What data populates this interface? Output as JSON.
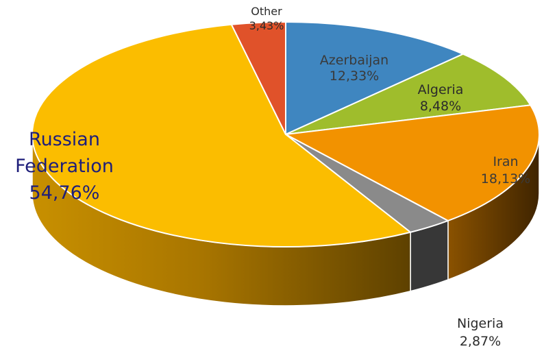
{
  "chart_data": {
    "type": "pie",
    "title": "",
    "style": "3d",
    "slices": [
      {
        "key": "azerbaijan",
        "label": "Azerbaijan",
        "value_text": "12,33%",
        "value": 12.33,
        "color": "#3f86c0",
        "label_color": "#3a3a3a"
      },
      {
        "key": "algeria",
        "label": "Algeria",
        "value_text": "8,48%",
        "value": 8.48,
        "color": "#9fbd2c",
        "label_color": "#2b2b2b"
      },
      {
        "key": "iran",
        "label": "Iran",
        "value_text": "18,13%",
        "value": 18.13,
        "color": "#f29200",
        "label_color": "#3a3a3a"
      },
      {
        "key": "nigeria",
        "label": "Nigeria",
        "value_text": "2,87%",
        "value": 2.87,
        "color": "#8a8a8a",
        "label_color": "#2b2b2b"
      },
      {
        "key": "russian-federation",
        "label": "Russian Federation",
        "label_lines": [
          "Russian",
          "Federation"
        ],
        "value_text": "54,76%",
        "value": 54.76,
        "color": "#fbbd00",
        "label_color": "#1e1e7a"
      },
      {
        "key": "other",
        "label": "Other",
        "value_text": "3,43%",
        "value": 3.43,
        "color": "#e0522a",
        "label_color": "#2b2b2b"
      }
    ]
  }
}
